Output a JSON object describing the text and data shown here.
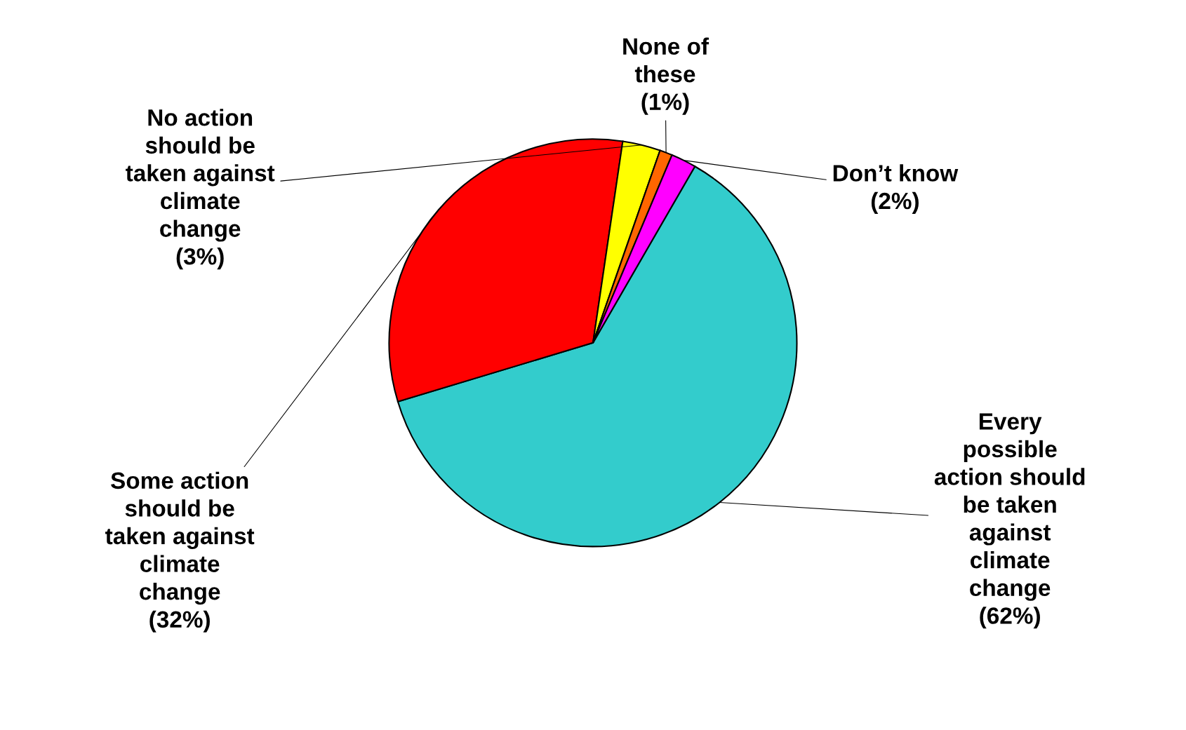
{
  "chart_data": {
    "type": "pie",
    "categories": [
      "Every\npossible\naction should\nbe taken\nagainst\nclimate\nchange",
      "Some action\nshould be\ntaken against\nclimate\nchange",
      "No action\nshould be\ntaken against\nclimate\nchange",
      "None of\nthese",
      "Don’t know"
    ],
    "values": [
      62,
      32,
      3,
      1,
      2
    ],
    "value_labels": [
      "(62%)",
      "(32%)",
      "(3%)",
      "(1%)",
      "(2%)"
    ],
    "colors": [
      "#33cccc",
      "#ff0000",
      "#ffff00",
      "#ff6600",
      "#ff00ff"
    ],
    "legend": false
  }
}
